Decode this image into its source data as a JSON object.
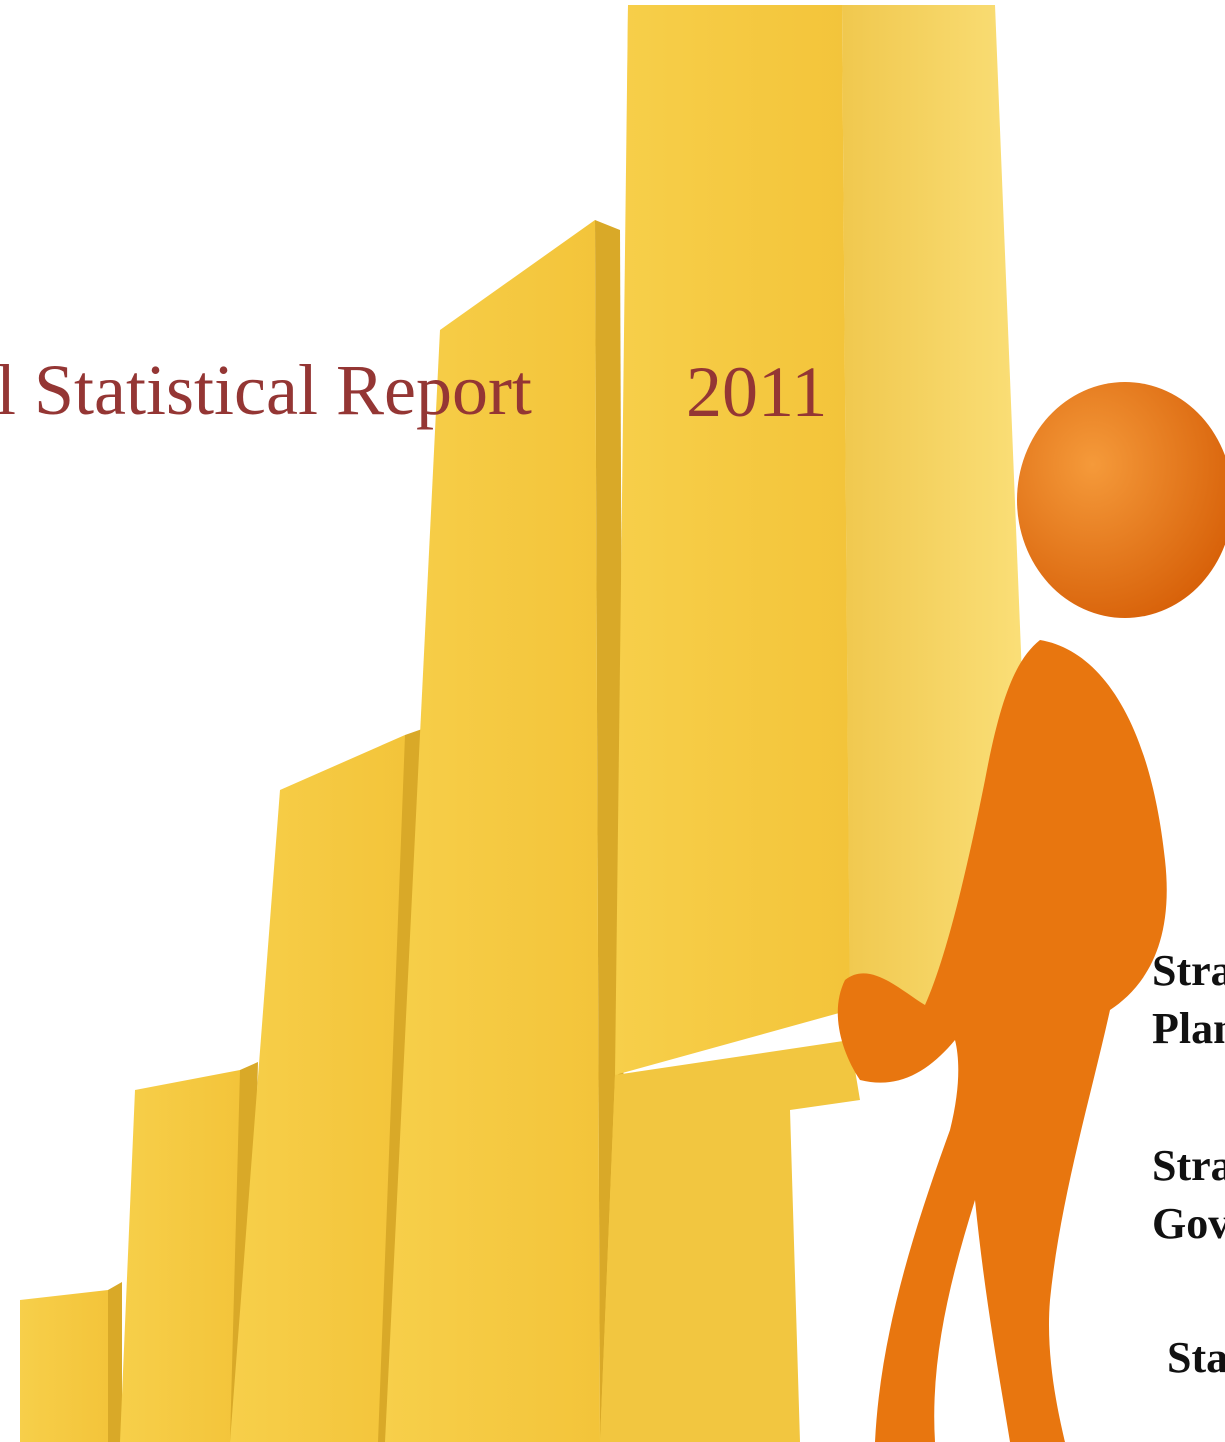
{
  "title": "l Statistical Report",
  "year": "2011",
  "side_lines": [
    "Stra",
    "Plan",
    "Stra",
    "Gov",
    "Sta"
  ]
}
